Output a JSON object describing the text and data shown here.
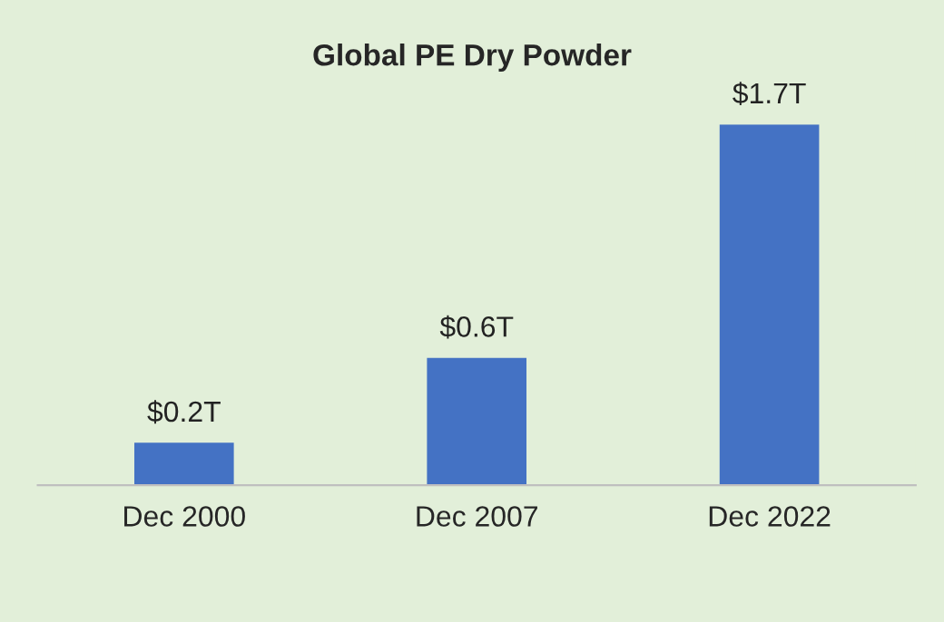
{
  "chart_data": {
    "type": "bar",
    "title": "Global PE Dry Powder",
    "categories": [
      "Dec 2000",
      "Dec 2007",
      "Dec 2022"
    ],
    "values": [
      0.2,
      0.6,
      1.7
    ],
    "value_labels": [
      "$0.2T",
      "$0.6T",
      "$1.7T"
    ],
    "color": "#4472c4"
  }
}
